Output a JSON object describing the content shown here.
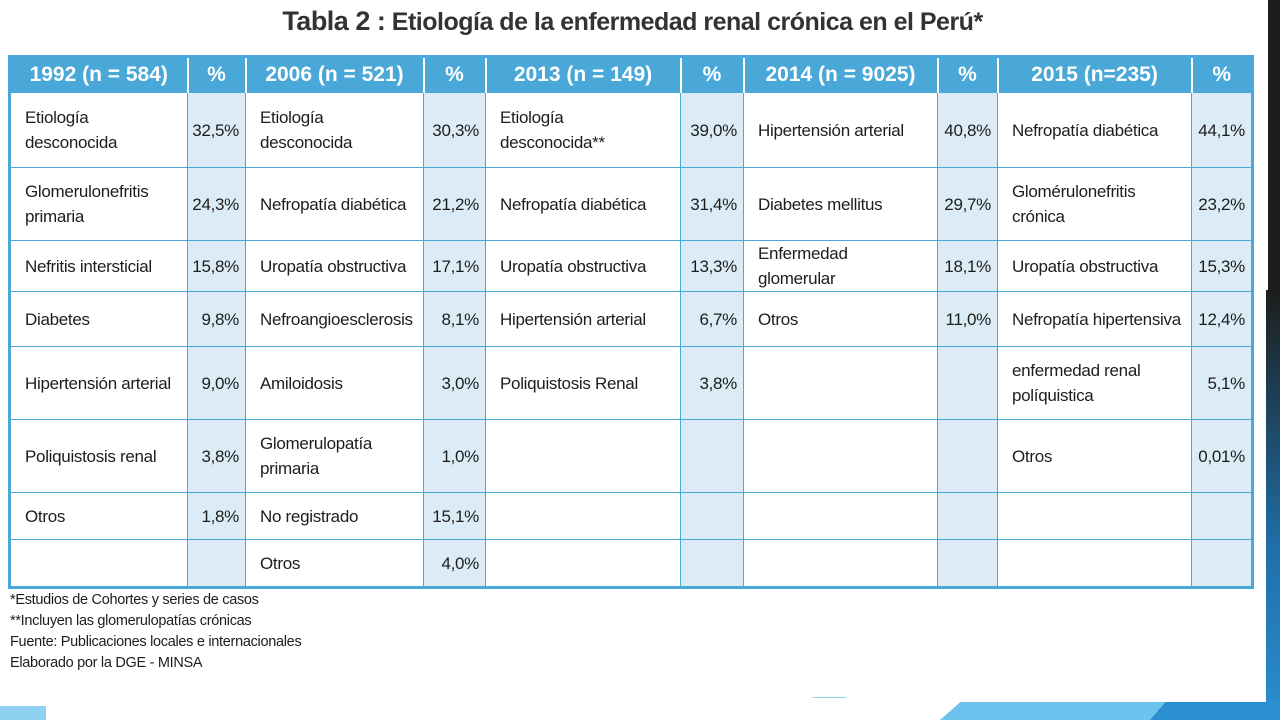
{
  "title": {
    "prefix": "Tabla 2 :",
    "text": "Etiología de la enfermedad renal crónica en el Perú*"
  },
  "table": {
    "headers": [
      "1992 (n = 584)",
      "%",
      "2006 (n = 521)",
      "%",
      "2013 (n = 149)",
      "%",
      "2014 (n = 9025)",
      "%",
      "2015 (n=235)",
      "%"
    ],
    "rows": [
      [
        "Etiología desconocida",
        "32,5%",
        "Etiología desconocida",
        "30,3%",
        "Etiología desconocida**",
        "39,0%",
        "Hipertensión arterial",
        "40,8%",
        "Nefropatía diabética",
        "44,1%"
      ],
      [
        "Glomerulonefritis primaria",
        "24,3%",
        "Nefropatía diabética",
        "21,2%",
        "Nefropatía diabética",
        "31,4%",
        "Diabetes mellitus",
        "29,7%",
        "Glomérulonefritis crónica",
        "23,2%"
      ],
      [
        "Nefritis intersticial",
        "15,8%",
        "Uropatía obstructiva",
        "17,1%",
        "Uropatía obstructiva",
        "13,3%",
        "Enfermedad glomerular",
        "18,1%",
        "Uropatía obstructiva",
        "15,3%"
      ],
      [
        "Diabetes",
        "9,8%",
        "Nefroangioesclerosis",
        "8,1%",
        "Hipertensión arterial",
        "6,7%",
        "Otros",
        "11,0%",
        "Nefropatía hipertensiva",
        "12,4%"
      ],
      [
        "Hipertensión arterial",
        "9,0%",
        "Amiloidosis",
        "3,0%",
        "Poliquistosis Renal",
        "3,8%",
        "",
        "",
        "enfermedad renal políquistica",
        "5,1%"
      ],
      [
        "Poliquistosis renal",
        "3,8%",
        "Glomerulopatía primaria",
        "1,0%",
        "",
        "",
        "",
        "",
        "Otros",
        "0,01%"
      ],
      [
        "Otros",
        "1,8%",
        "No registrado",
        "15,1%",
        "",
        "",
        "",
        "",
        "",
        ""
      ],
      [
        "",
        "",
        "Otros",
        "4,0%",
        "",
        "",
        "",
        "",
        "",
        ""
      ]
    ]
  },
  "notes": [
    "*Estudios de Cohortes y series de casos",
    "**Incluyen las glomerulopatías crónicas",
    "Fuente: Publicaciones locales e internacionales",
    "Elaborado por la DGE - MINSA"
  ]
}
